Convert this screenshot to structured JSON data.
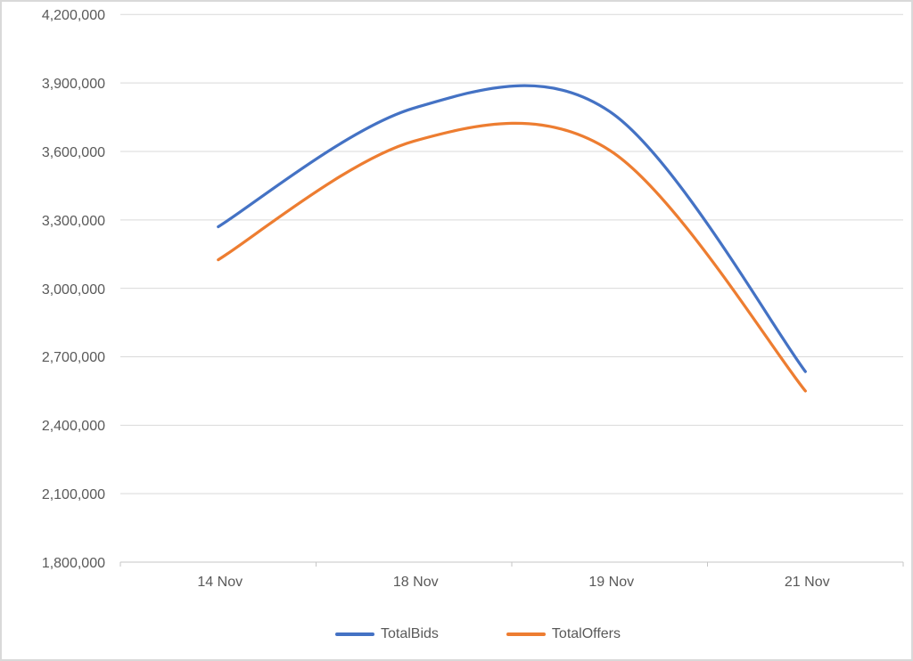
{
  "chart_data": {
    "type": "line",
    "smooth": true,
    "title": "",
    "xlabel": "",
    "ylabel": "",
    "categories": [
      "14 Nov",
      "18 Nov",
      "19 Nov",
      "21 Nov"
    ],
    "series": [
      {
        "name": "TotalBids",
        "color": "#4472C4",
        "values": [
          3270000,
          3790000,
          3775000,
          2635000
        ]
      },
      {
        "name": "TotalOffers",
        "color": "#ED7D31",
        "values": [
          3125000,
          3645000,
          3605000,
          2550000
        ]
      }
    ],
    "y_axis": {
      "min": 1800000,
      "max": 4200000,
      "step": 300000,
      "tick_labels": [
        "1,800,000",
        "2,100,000",
        "2,400,000",
        "2,700,000",
        "3,000,000",
        "3,300,000",
        "3,600,000",
        "3,900,000",
        "4,200,000"
      ]
    },
    "legend_position": "bottom",
    "grid": true,
    "colors": {
      "gridline": "#D9D9D9",
      "axis_line": "#C6C6C6",
      "text": "#595959",
      "border": "#D9D9D9",
      "background": "#FFFFFF"
    }
  }
}
